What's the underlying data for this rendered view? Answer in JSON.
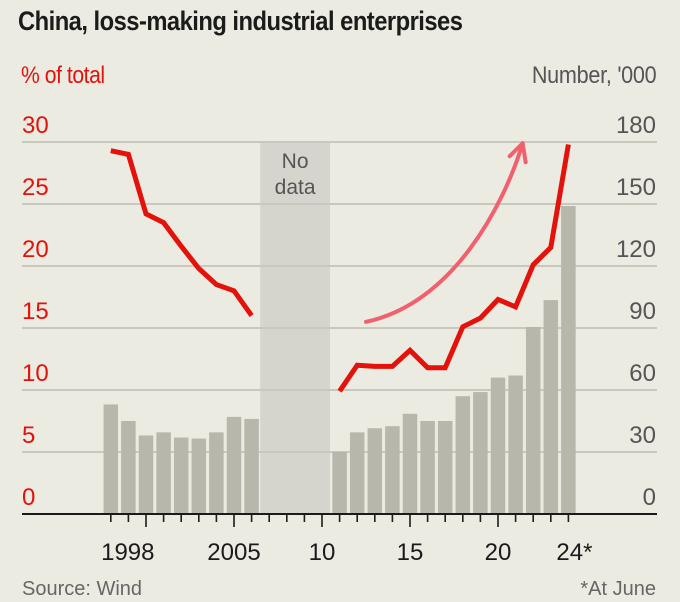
{
  "chart_data": {
    "type": "bar+line",
    "title": "China, loss-making industrial enterprises",
    "left_axis": {
      "label": "% of total",
      "range": [
        0,
        30
      ],
      "ticks": [
        "0",
        "5",
        "10",
        "15",
        "20",
        "25",
        "30"
      ],
      "color": "#e3120b"
    },
    "right_axis": {
      "label": "Number, '000",
      "range": [
        0,
        180
      ],
      "ticks": [
        "0",
        "30",
        "60",
        "90",
        "120",
        "150",
        "180"
      ],
      "color": "#555555"
    },
    "x_axis": {
      "range": [
        1996.3,
        2025.2
      ],
      "labels": [
        {
          "year": 1998,
          "text": "1998"
        },
        {
          "year": 2005,
          "text": "2005"
        },
        {
          "year": 2010,
          "text": "10"
        },
        {
          "year": 2015,
          "text": "15"
        },
        {
          "year": 2020,
          "text": "20"
        },
        {
          "year": 2024,
          "text": "24*"
        }
      ],
      "major_ticks": [
        2000,
        2005,
        2010,
        2015,
        2020
      ],
      "minor_ticks_from": 1998,
      "minor_ticks_to": 2024
    },
    "grid": true,
    "no_data_band": {
      "from": 2007,
      "to": 2010,
      "label_line1": "No",
      "label_line2": "data"
    },
    "series": [
      {
        "name": "Number of loss-making enterprises ('000)",
        "kind": "bar",
        "axis": "right",
        "color": "#b7b7ac",
        "segments": [
          {
            "x": [
              1998,
              1999,
              2000,
              2001,
              2002,
              2003,
              2004,
              2005,
              2006
            ],
            "values": [
              53,
              45,
              38,
              39.5,
              37,
              36.5,
              39.5,
              47,
              46
            ]
          },
          {
            "x": [
              2011,
              2012,
              2013,
              2014,
              2015,
              2016,
              2017,
              2018,
              2019,
              2020,
              2021,
              2022,
              2023,
              2024
            ],
            "values": [
              30,
              39.5,
              41.5,
              42.5,
              48.5,
              45,
              45,
              57,
              59,
              66,
              67,
              90.5,
              103.5,
              149
            ]
          }
        ]
      },
      {
        "name": "Share of total (%)",
        "kind": "line",
        "axis": "left",
        "color": "#e3120b",
        "segments": [
          {
            "x": [
              1998,
              1999,
              2000,
              2001,
              2002,
              2003,
              2004,
              2005,
              2006
            ],
            "values": [
              29.3,
              29,
              24.2,
              23.5,
              21.6,
              19.8,
              18.5,
              18,
              16
            ]
          },
          {
            "x": [
              2011,
              2012,
              2013,
              2014,
              2015,
              2016,
              2017,
              2018,
              2019,
              2020,
              2021,
              2022,
              2023,
              2024
            ],
            "values": [
              9.9,
              12,
              11.9,
              11.9,
              13.2,
              11.8,
              11.8,
              15.1,
              15.8,
              17.3,
              16.7,
              20.1,
              21.5,
              29.8
            ]
          }
        ]
      }
    ],
    "annotations": [
      {
        "type": "arrow",
        "meaning": "upward trend",
        "from": {
          "year": 2012.5,
          "pct": 15.5
        },
        "to": {
          "year": 2021.4,
          "pct": 29.9
        },
        "color": "#f2606e"
      }
    ],
    "source": "Source: Wind",
    "footnote": "*At June"
  }
}
